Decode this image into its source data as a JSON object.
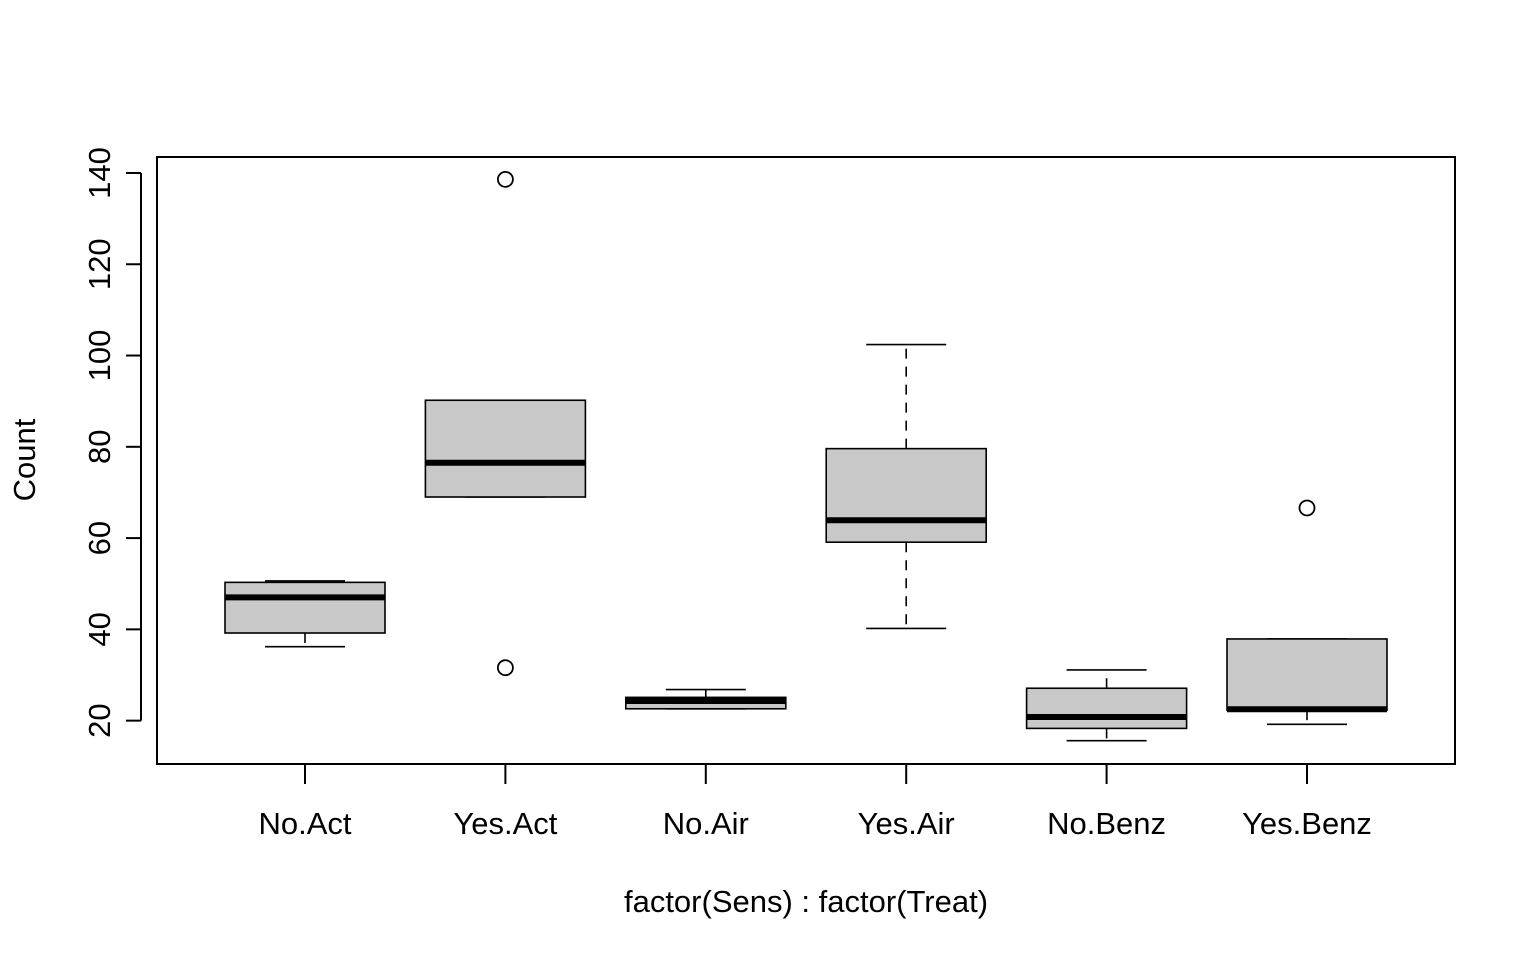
{
  "chart_data": {
    "type": "boxplot",
    "title": "",
    "xlabel": "factor(Sens) : factor(Treat)",
    "ylabel": "Count",
    "ylim": [
      10.5,
      143.5
    ],
    "yticks": [
      20,
      40,
      60,
      80,
      100,
      120,
      140
    ],
    "grid": false,
    "box_fill": "#c8c8c8",
    "categories": [
      "No.Act",
      "Yes.Act",
      "No.Air",
      "Yes.Air",
      "No.Benz",
      "Yes.Benz"
    ],
    "boxes": [
      {
        "category": "No.Act",
        "whisker_low": 36.2,
        "q1": 39.2,
        "median": 47.0,
        "q3": 50.3,
        "whisker_high": 50.6,
        "outliers": []
      },
      {
        "category": "Yes.Act",
        "whisker_low": 69.0,
        "q1": 69.0,
        "median": 76.5,
        "q3": 90.2,
        "whisker_high": 90.2,
        "outliers": [
          31.6,
          138.6
        ]
      },
      {
        "category": "No.Air",
        "whisker_low": 22.6,
        "q1": 22.6,
        "median": 24.3,
        "q3": 25.1,
        "whisker_high": 26.8,
        "outliers": []
      },
      {
        "category": "Yes.Air",
        "whisker_low": 40.2,
        "q1": 59.1,
        "median": 63.9,
        "q3": 79.6,
        "whisker_high": 102.4,
        "outliers": []
      },
      {
        "category": "No.Benz",
        "whisker_low": 15.6,
        "q1": 18.3,
        "median": 20.8,
        "q3": 27.1,
        "whisker_high": 31.1,
        "outliers": []
      },
      {
        "category": "Yes.Benz",
        "whisker_low": 19.2,
        "q1": 22.3,
        "median": 22.5,
        "q3": 37.9,
        "whisker_high": 37.9,
        "outliers": [
          66.6
        ]
      }
    ]
  }
}
